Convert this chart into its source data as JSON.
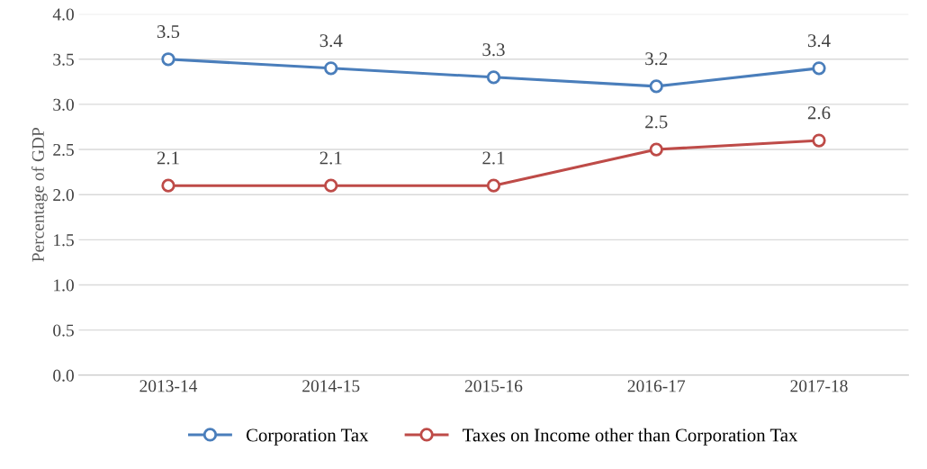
{
  "chart_data": {
    "type": "line",
    "ylabel": "Percentage of GDP",
    "categories": [
      "2013-14",
      "2014-15",
      "2015-16",
      "2016-17",
      "2017-18"
    ],
    "series": [
      {
        "name": "Corporation Tax",
        "color": "#4a7ebb",
        "values": [
          3.5,
          3.4,
          3.3,
          3.2,
          3.4
        ]
      },
      {
        "name": "Taxes on Income other than Corporation Tax",
        "color": "#be4b48",
        "values": [
          2.1,
          2.1,
          2.1,
          2.5,
          2.6
        ]
      }
    ],
    "ylim": [
      0,
      4
    ],
    "yticks": [
      {
        "value": 0,
        "label": "0.0"
      },
      {
        "value": 0.5,
        "label": "0.5"
      },
      {
        "value": 1,
        "label": "1.0"
      },
      {
        "value": 1.5,
        "label": "1.5"
      },
      {
        "value": 2,
        "label": "2.0"
      },
      {
        "value": 2.5,
        "label": "2.5"
      },
      {
        "value": 3,
        "label": "3.0"
      },
      {
        "value": 3.5,
        "label": "3.5"
      },
      {
        "value": 4,
        "label": "4.0"
      }
    ],
    "grid": "y",
    "legend": "bottom",
    "marker": "circle",
    "line_style": "solid",
    "data_labels": true
  }
}
